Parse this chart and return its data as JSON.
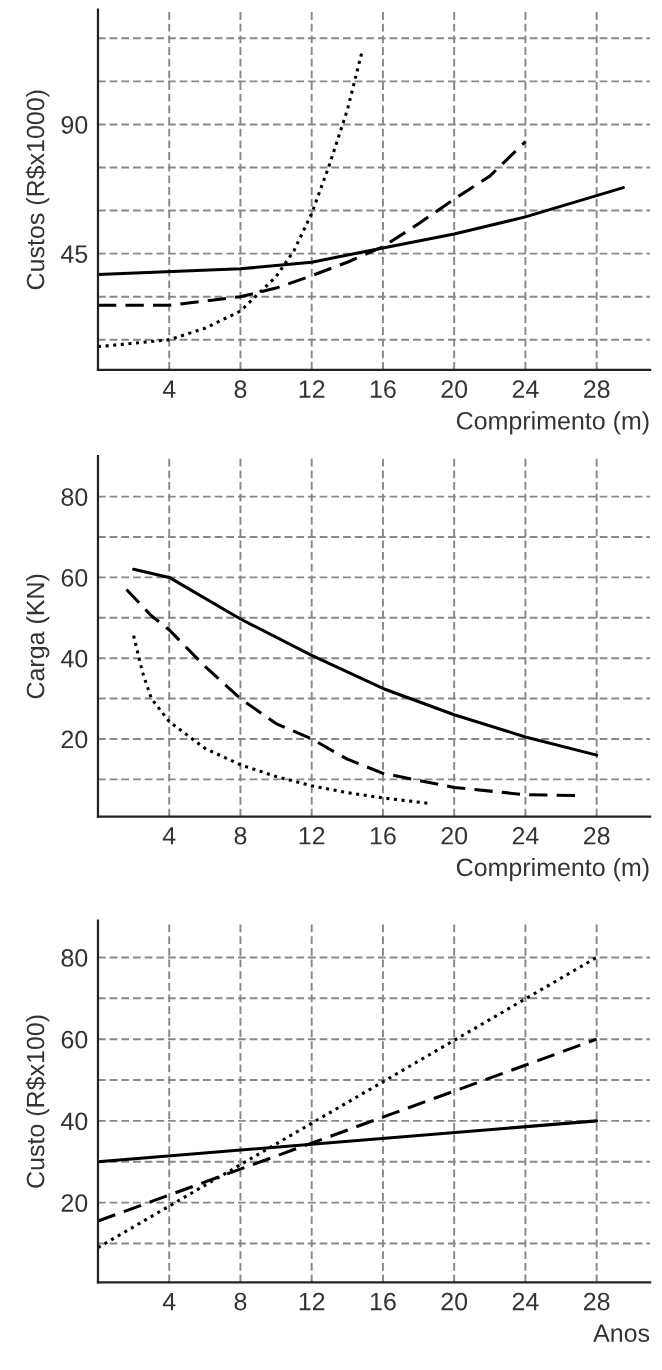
{
  "chart_data": [
    {
      "type": "line",
      "ylabel": "Custos (R$x1000)",
      "xlabel": "Comprimento (m)",
      "xlim": [
        0,
        31
      ],
      "ylim": [
        4.5,
        130
      ],
      "xticks": [
        4,
        8,
        12,
        16,
        20,
        24,
        28
      ],
      "yticks": [
        {
          "value": 15,
          "label": null
        },
        {
          "value": 30,
          "label": null
        },
        45,
        {
          "value": 60,
          "label": null
        },
        {
          "value": 75,
          "label": null
        },
        90,
        {
          "value": 105,
          "label": null
        },
        {
          "value": 120,
          "label": null
        }
      ],
      "grid": true,
      "legend": false,
      "marker": "none",
      "series": [
        {
          "color": "#000000",
          "line_style": "solid",
          "x": [
            0,
            8,
            12,
            16,
            20,
            24,
            29.5
          ],
          "values": [
            37.7,
            39.7,
            42,
            47,
            51.8,
            57.8,
            68
          ]
        },
        {
          "color": "#000000",
          "line_style": "dashed",
          "x": [
            0,
            4,
            8,
            10,
            12,
            14,
            16,
            18,
            20,
            22,
            24
          ],
          "values": [
            27,
            27,
            30,
            33,
            37.3,
            42,
            47.4,
            55.4,
            64,
            72,
            84
          ]
        },
        {
          "color": "#000000",
          "line_style": "dotted",
          "x": [
            0,
            4,
            6,
            8,
            9,
            10,
            11,
            12,
            13,
            14,
            14.8
          ],
          "values": [
            12.6,
            15,
            19,
            25,
            31,
            37,
            46,
            59,
            76,
            95,
            114.7
          ]
        }
      ]
    },
    {
      "type": "line",
      "ylabel": "Carga (KN)",
      "xlabel": "Comprimento (m)",
      "xlim": [
        0,
        31
      ],
      "ylim": [
        0.8,
        90
      ],
      "xticks": [
        4,
        8,
        12,
        16,
        20,
        24,
        28
      ],
      "yticks": [
        {
          "value": 10,
          "label": null
        },
        20,
        {
          "value": 30,
          "label": null
        },
        40,
        {
          "value": 50,
          "label": null
        },
        60,
        {
          "value": 70,
          "label": null
        },
        80
      ],
      "grid": true,
      "legend": false,
      "marker": "none",
      "series": [
        {
          "color": "#000000",
          "line_style": "solid",
          "x": [
            2,
            4,
            8,
            12,
            16,
            20,
            24,
            28
          ],
          "values": [
            62,
            60,
            49.7,
            40.7,
            32.5,
            26,
            20.5,
            16
          ]
        },
        {
          "color": "#000000",
          "line_style": "dashed",
          "x": [
            1.6,
            3,
            4,
            6,
            8,
            10,
            12,
            14,
            16,
            20,
            24,
            27
          ],
          "values": [
            57,
            50.5,
            47,
            38,
            30,
            23.8,
            20,
            15,
            11.5,
            8,
            6.2,
            6
          ]
        },
        {
          "color": "#000000",
          "line_style": "dotted",
          "x": [
            2,
            2.5,
            3,
            4,
            6,
            8,
            10,
            12,
            14,
            16,
            18.5
          ],
          "values": [
            45.6,
            36.5,
            30,
            24.3,
            17.7,
            13.6,
            10.7,
            8.4,
            6.7,
            5.4,
            4.1
          ]
        }
      ]
    },
    {
      "type": "line",
      "ylabel": "Custo (R$x100)",
      "xlabel": "Anos",
      "xlim": [
        0,
        31
      ],
      "ylim": [
        0.5,
        89
      ],
      "xticks": [
        4,
        8,
        12,
        16,
        20,
        24,
        28
      ],
      "yticks": [
        {
          "value": 10,
          "label": null
        },
        20,
        {
          "value": 30,
          "label": null
        },
        40,
        {
          "value": 50,
          "label": null
        },
        60,
        {
          "value": 70,
          "label": null
        },
        80
      ],
      "grid": true,
      "legend": false,
      "marker": "none",
      "series": [
        {
          "color": "#000000",
          "line_style": "solid",
          "x": [
            0,
            28
          ],
          "values": [
            30,
            40
          ]
        },
        {
          "color": "#000000",
          "line_style": "dashed",
          "x": [
            0,
            28
          ],
          "values": [
            15.5,
            60
          ]
        },
        {
          "color": "#000000",
          "line_style": "dotted",
          "x": [
            0,
            28
          ],
          "values": [
            9,
            80
          ]
        }
      ]
    }
  ]
}
